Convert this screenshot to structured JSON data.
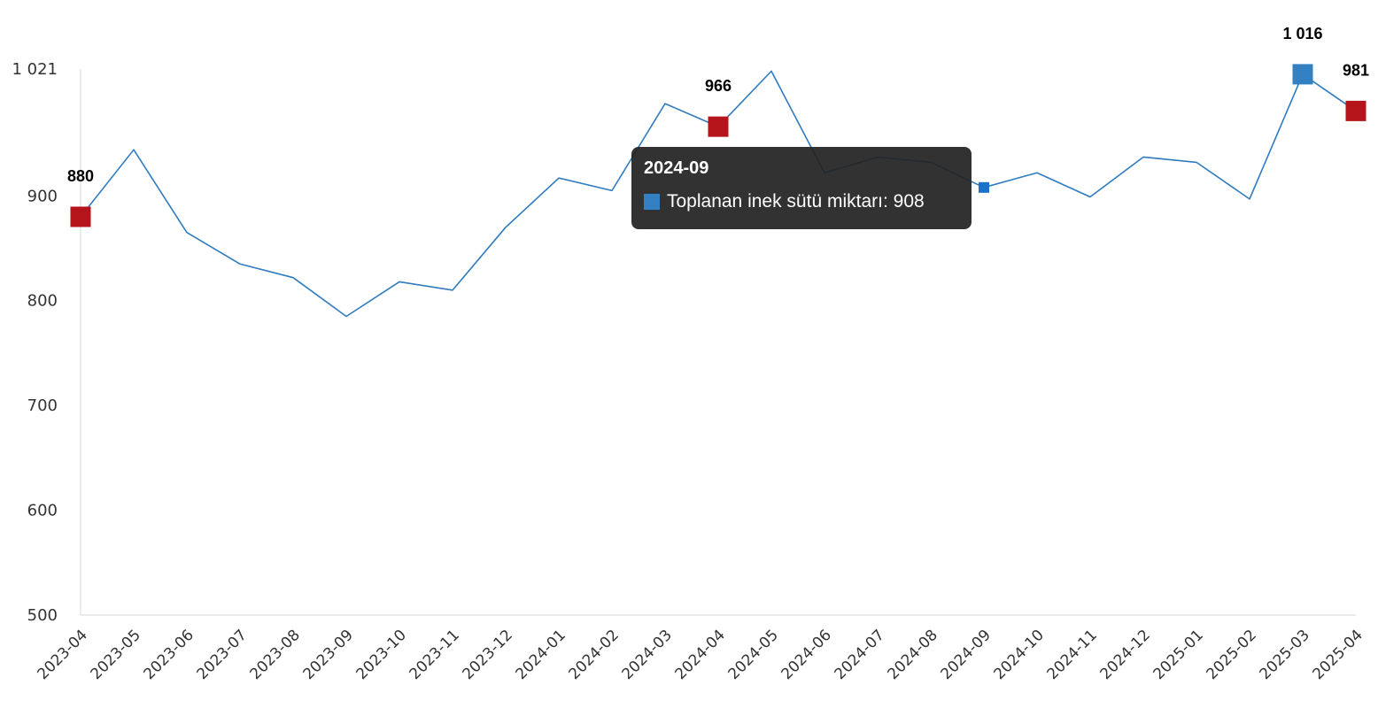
{
  "chart_data": {
    "type": "line",
    "categories": [
      "2023-04",
      "2023-05",
      "2023-06",
      "2023-07",
      "2023-08",
      "2023-09",
      "2023-10",
      "2023-11",
      "2023-12",
      "2024-01",
      "2024-02",
      "2024-03",
      "2024-04",
      "2024-05",
      "2024-06",
      "2024-07",
      "2024-08",
      "2024-09",
      "2024-10",
      "2024-11",
      "2024-12",
      "2025-01",
      "2025-02",
      "2025-03",
      "2025-04"
    ],
    "series": [
      {
        "name": "Toplanan inek sütü miktarı",
        "values": [
          880,
          944,
          865,
          835,
          822,
          785,
          818,
          810,
          870,
          917,
          905,
          988,
          966,
          1019,
          922,
          937,
          932,
          908,
          922,
          899,
          937,
          932,
          897,
          1016,
          981
        ]
      }
    ],
    "y_ticks": [
      {
        "value": 500,
        "label": "500"
      },
      {
        "value": 600,
        "label": "600"
      },
      {
        "value": 700,
        "label": "700"
      },
      {
        "value": 800,
        "label": "800"
      },
      {
        "value": 900,
        "label": "900"
      },
      {
        "value": 1021,
        "label": "1 021"
      }
    ],
    "ylim": [
      500,
      1021
    ],
    "grid": false,
    "data_labels": [
      {
        "index": 0,
        "text": "880"
      },
      {
        "index": 12,
        "text": "966"
      },
      {
        "index": 23,
        "text": "1 016"
      },
      {
        "index": 24,
        "text": "981"
      }
    ],
    "markers": [
      {
        "index": 0,
        "kind": "low",
        "color": "#b5141b"
      },
      {
        "index": 12,
        "kind": "low",
        "color": "#b5141b"
      },
      {
        "index": 23,
        "kind": "high",
        "color": "#3380c2"
      },
      {
        "index": 24,
        "kind": "low",
        "color": "#b5141b"
      },
      {
        "index": 17,
        "kind": "hover",
        "color": "#1a73c9"
      }
    ],
    "tooltip": {
      "title": "2024-09",
      "series_label": "Toplanan inek sütü miktarı",
      "value": "908",
      "swatch_color": "#3380c2"
    },
    "colors": {
      "line": "#2f7bbf",
      "axis": "#d8d8d8"
    }
  }
}
